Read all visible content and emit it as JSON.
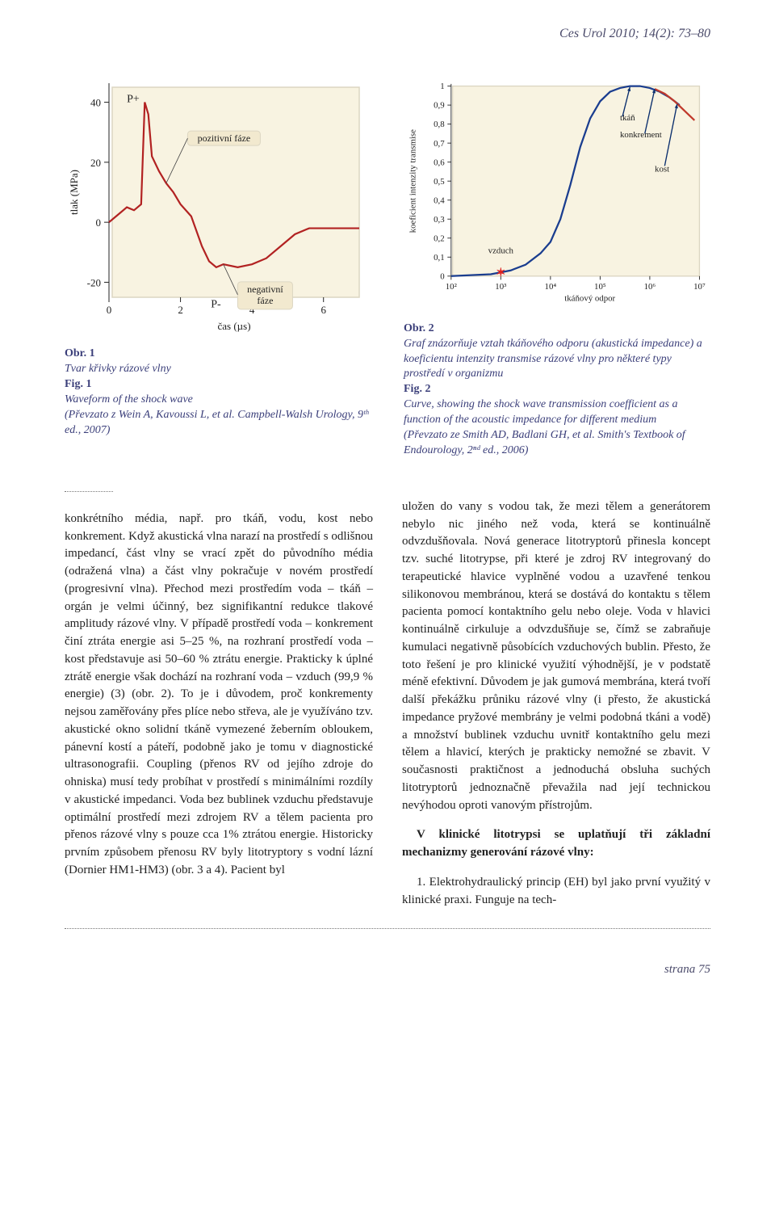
{
  "running_head": "Ces Urol 2010; 14(2): 73–80",
  "page_label": "strana 75",
  "fig1": {
    "type": "line",
    "axis_color": "#222",
    "line_color": "#b22222",
    "box_border": "#dcd6c2",
    "box_fill": "#f8f3e1",
    "callout_fill": "#f2e9cf",
    "ylabel": "tlak (MPa)",
    "xlabel": "čas (µs)",
    "yticks": [
      -20,
      0,
      20,
      40
    ],
    "xticks": [
      0,
      2,
      4,
      6
    ],
    "xlim": [
      0,
      7
    ],
    "ylim": [
      -25,
      45
    ],
    "p_plus": "P+",
    "p_minus": "P-",
    "pos_label": "pozitivní fáze",
    "neg_label1": "negativní",
    "neg_label2": "fáze",
    "series": [
      [
        0,
        0
      ],
      [
        0.3,
        3
      ],
      [
        0.5,
        5
      ],
      [
        0.7,
        4
      ],
      [
        0.9,
        6
      ],
      [
        1.0,
        40
      ],
      [
        1.1,
        36
      ],
      [
        1.2,
        22
      ],
      [
        1.4,
        17
      ],
      [
        1.6,
        13
      ],
      [
        1.8,
        10
      ],
      [
        2.0,
        6
      ],
      [
        2.3,
        2
      ],
      [
        2.6,
        -8
      ],
      [
        2.8,
        -13
      ],
      [
        3.0,
        -15
      ],
      [
        3.2,
        -14
      ],
      [
        3.6,
        -15
      ],
      [
        4.0,
        -14
      ],
      [
        4.4,
        -12
      ],
      [
        4.8,
        -8
      ],
      [
        5.2,
        -4
      ],
      [
        5.6,
        -2
      ],
      [
        6.0,
        -2
      ],
      [
        6.5,
        -2
      ],
      [
        7.0,
        -2
      ]
    ],
    "label_cz": "Obr. 1",
    "title_cz": "Tvar křivky rázové vlny",
    "label_en": "Fig. 1",
    "title_en": "Waveform of the shock wave",
    "credit": "(Převzato z Wein A, Kavoussi L, et al. Campbell-Walsh Urology, 9ᵗʰ ed., 2007)"
  },
  "fig2": {
    "type": "line",
    "box_border": "#dcd6c2",
    "box_fill": "#f8f3e1",
    "axis_color": "#222",
    "curve_color": "#1a3d8f",
    "tail_color": "#c0392b",
    "marker_color": "#d22",
    "arrow_color": "#0a2e6d",
    "ylabel": "koeficient intenzity transmise",
    "xlabel": "tkáňový odpor",
    "yticks": [
      "0",
      "0,1",
      "0,2",
      "0,3",
      "0,4",
      "0,5",
      "0,6",
      "0,7",
      "0,8",
      "0,9",
      "1"
    ],
    "xticks": [
      "10²",
      "10³",
      "10⁴",
      "10⁵",
      "10⁶",
      "10⁷"
    ],
    "xlim": [
      2,
      7
    ],
    "ylim": [
      0,
      1
    ],
    "air_label": "vzduch",
    "tissue_label": "tkáň",
    "stone_label": "konkrement",
    "bone_label": "kost",
    "curve": [
      [
        2.0,
        0.0
      ],
      [
        2.8,
        0.01
      ],
      [
        3.2,
        0.03
      ],
      [
        3.5,
        0.06
      ],
      [
        3.8,
        0.12
      ],
      [
        4.0,
        0.18
      ],
      [
        4.2,
        0.3
      ],
      [
        4.4,
        0.48
      ],
      [
        4.6,
        0.68
      ],
      [
        4.8,
        0.83
      ],
      [
        5.0,
        0.92
      ],
      [
        5.2,
        0.97
      ],
      [
        5.4,
        0.99
      ],
      [
        5.6,
        1.0
      ],
      [
        5.8,
        1.0
      ],
      [
        6.0,
        0.99
      ],
      [
        6.2,
        0.97
      ],
      [
        6.4,
        0.94
      ],
      [
        6.6,
        0.9
      ]
    ],
    "tail": [
      [
        6.1,
        0.985
      ],
      [
        6.3,
        0.96
      ],
      [
        6.5,
        0.92
      ],
      [
        6.7,
        0.87
      ],
      [
        6.9,
        0.82
      ]
    ],
    "air_marker": [
      3.0,
      0.018
    ],
    "tissue_arrow_to": [
      5.6,
      0.995
    ],
    "stone_arrow_to": [
      6.1,
      0.985
    ],
    "bone_arrow_to": [
      6.55,
      0.905
    ],
    "label_cz": "Obr. 2",
    "title_cz": "Graf znázorňuje vztah tkáňového odporu (akustická impedance) a koeficientu intenzity transmise rázové vlny pro některé typy prostředí v organizmu",
    "label_en": "Fig. 2",
    "title_en": "Curve, showing the shock wave transmission coefficient as a function of the acoustic impedance for different medium",
    "credit": "(Převzato ze Smith AD, Badlani GH, et al. Smith's Textbook of Endourology, 2ⁿᵈ ed., 2006)"
  },
  "body_p1": "konkrétního média, např. pro tkáň, vodu, kost nebo konkrement. Když akustická vlna narazí na prostředí s odlišnou impedancí, část vlny se vrací zpět do původního média (odražená vlna) a část vlny pokračuje v novém prostředí (progresivní vlna). Přechod mezi prostředím voda – tkáň – orgán je velmi účinný, bez signifikantní redukce tlakové amplitudy rázové vlny. V případě prostředí voda – konkrement činí ztráta energie asi 5–25 %, na rozhraní prostředí voda – kost představuje asi 50–60 % ztrátu energie. Prakticky k úplné ztrátě energie však dochází na rozhraní voda – vzduch (99,9 % energie) (3) (obr. 2). To je i důvodem, proč konkrementy nejsou zaměřovány přes plíce nebo střeva, ale je využíváno tzv. akustické okno solidní tkáně vymezené žeberním obloukem, pánevní kostí a páteří, podobně jako je tomu v diagnostické ultrasonografii. Coupling (přenos RV od jejího zdroje do ohniska) musí tedy probíhat v prostředí s minimálními rozdíly v akustické impedanci. Voda bez bublinek vzduchu představuje optimální prostředí mezi zdrojem RV a tělem pacienta pro přenos rázové vlny s pouze cca 1% ztrátou energie. Historicky prvním způsobem přenosu RV byly litotryptory s vodní lázní (Dornier HM1-HM3) (obr. 3 a 4). Pacient byl",
  "body_p2": "uložen do vany s vodou tak, že mezi tělem a generátorem nebylo nic jiného než voda, která se kontinuálně odvzdušňovala. Nová generace litotryptorů přinesla koncept tzv. suché litotrypse, při které je zdroj RV integrovaný do terapeutické hlavice vyplněné vodou a uzavřené tenkou silikonovou membránou, která se dostává do kontaktu s tělem pacienta pomocí kontaktního gelu nebo oleje. Voda v hlavici kontinuálně cirkuluje a odvzdušňuje se, čímž se zabraňuje kumulaci negativně působících vzduchových bublin. Přesto, že toto řešení je pro klinické využití výhodnější, je v podstatě méně efektivní. Důvodem je jak gumová membrána, která tvoří další překážku průniku rázové vlny (i přesto, že akustická impedance pryžové membrány je velmi podobná tkáni a vodě) a množství bublinek vzduchu uvnitř kontaktního gelu mezi tělem a hlavicí, kterých je prakticky nemožné se zbavit. V současnosti praktičnost a jednoduchá obsluha suchých litotryptorů jednoznačně převažila nad její technickou nevýhodou oproti vanovým přístrojům.",
  "body_p3_lead": "V klinické litotrypsi se uplatňují tři základní mechanizmy generování rázové vlny:",
  "body_p4": "1. Elektrohydraulický princip (EH) byl jako první využitý v klinické praxi. Funguje na tech-"
}
